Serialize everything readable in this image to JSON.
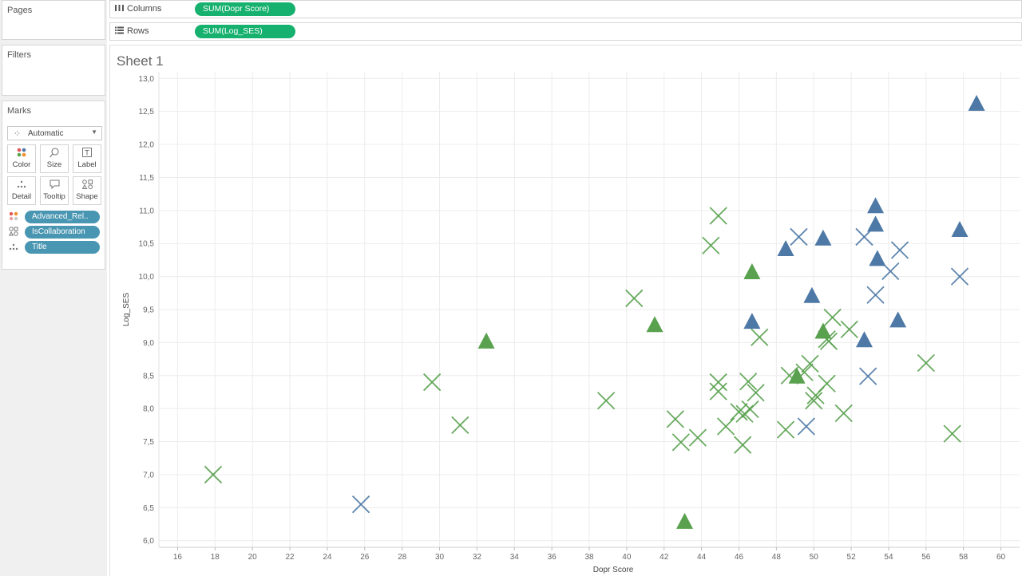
{
  "panes": {
    "pages_title": "Pages",
    "filters_title": "Filters",
    "marks_title": "Marks"
  },
  "marks_card": {
    "mark_type": "Automatic",
    "buttons": [
      {
        "label": "Color",
        "icon": "color-dots-icon"
      },
      {
        "label": "Size",
        "icon": "size-icon"
      },
      {
        "label": "Label",
        "icon": "label-icon"
      },
      {
        "label": "Detail",
        "icon": "detail-icon"
      },
      {
        "label": "Tooltip",
        "icon": "tooltip-icon"
      },
      {
        "label": "Shape",
        "icon": "shape-icon"
      }
    ],
    "fields": [
      {
        "label": "Advanced_Rel..",
        "icon": "color-dots-icon"
      },
      {
        "label": "IsCollaboration",
        "icon": "shape-icon"
      },
      {
        "label": "Title",
        "icon": "detail-icon"
      }
    ]
  },
  "shelves": {
    "columns_label": "Columns",
    "columns_pill": "SUM(Dopr Score)",
    "rows_label": "Rows",
    "rows_pill": "SUM(Log_SES)"
  },
  "sheet": {
    "title": "Sheet 1"
  },
  "colors": {
    "green": "#59a14f",
    "blue": "#4e79a7",
    "pill_green": "#16b16e",
    "pill_blue": "#4996b2"
  },
  "chart_data": {
    "type": "scatter",
    "xlabel": "Dopr Score",
    "ylabel": "Log_SES",
    "xlim": [
      15,
      61
    ],
    "ylim": [
      5.9,
      13.1
    ],
    "x_ticks": [
      16,
      18,
      20,
      22,
      24,
      26,
      28,
      30,
      32,
      34,
      36,
      38,
      40,
      42,
      44,
      46,
      48,
      50,
      52,
      54,
      56,
      58,
      60
    ],
    "y_ticks": [
      "6,0",
      "6,5",
      "7,0",
      "7,5",
      "8,0",
      "8,5",
      "9,0",
      "9,5",
      "10,0",
      "10,5",
      "11,0",
      "11,5",
      "12,0",
      "12,5",
      "13,0"
    ],
    "y_tick_values": [
      6.0,
      6.5,
      7.0,
      7.5,
      8.0,
      8.5,
      9.0,
      9.5,
      10.0,
      10.5,
      11.0,
      11.5,
      12.0,
      12.5,
      13.0
    ],
    "grid": true,
    "series": [
      {
        "color": "#59a14f",
        "shape": "cross",
        "points": [
          [
            17.9,
            7.0
          ],
          [
            29.6,
            8.4
          ],
          [
            31.1,
            7.75
          ],
          [
            38.9,
            8.12
          ],
          [
            40.4,
            9.67
          ],
          [
            42.6,
            7.84
          ],
          [
            42.9,
            7.49
          ],
          [
            43.8,
            7.56
          ],
          [
            44.5,
            10.47
          ],
          [
            44.9,
            10.92
          ],
          [
            44.9,
            8.4
          ],
          [
            44.9,
            8.26
          ],
          [
            45.3,
            7.73
          ],
          [
            46.0,
            7.95
          ],
          [
            46.3,
            7.92
          ],
          [
            46.2,
            7.45
          ],
          [
            46.5,
            8.41
          ],
          [
            46.6,
            7.99
          ],
          [
            46.9,
            8.24
          ],
          [
            47.1,
            9.08
          ],
          [
            48.5,
            7.68
          ],
          [
            48.7,
            8.5
          ],
          [
            49.5,
            8.55
          ],
          [
            49.8,
            8.68
          ],
          [
            50.1,
            8.2
          ],
          [
            50.0,
            8.12
          ],
          [
            50.7,
            9.05
          ],
          [
            50.8,
            9.02
          ],
          [
            50.7,
            8.38
          ],
          [
            51.0,
            9.38
          ],
          [
            51.6,
            7.93
          ],
          [
            51.9,
            9.2
          ],
          [
            56.0,
            8.69
          ],
          [
            57.4,
            7.62
          ]
        ]
      },
      {
        "color": "#59a14f",
        "shape": "triangle",
        "points": [
          [
            32.5,
            9.03
          ],
          [
            41.5,
            9.28
          ],
          [
            43.1,
            6.3
          ],
          [
            46.7,
            10.08
          ],
          [
            49.1,
            8.5
          ],
          [
            50.5,
            9.18
          ]
        ]
      },
      {
        "color": "#4e79a7",
        "shape": "cross",
        "points": [
          [
            25.8,
            6.55
          ],
          [
            49.2,
            10.6
          ],
          [
            49.6,
            7.73
          ],
          [
            52.7,
            10.6
          ],
          [
            52.9,
            8.49
          ],
          [
            53.3,
            9.72
          ],
          [
            54.1,
            10.08
          ],
          [
            54.6,
            10.4
          ],
          [
            57.8,
            10.0
          ]
        ]
      },
      {
        "color": "#4e79a7",
        "shape": "triangle",
        "points": [
          [
            46.7,
            9.33
          ],
          [
            48.5,
            10.43
          ],
          [
            49.9,
            9.72
          ],
          [
            50.5,
            10.59
          ],
          [
            52.7,
            9.05
          ],
          [
            53.3,
            10.8
          ],
          [
            53.3,
            11.08
          ],
          [
            53.4,
            10.28
          ],
          [
            54.5,
            9.35
          ],
          [
            57.8,
            10.72
          ],
          [
            58.7,
            12.63
          ]
        ]
      }
    ]
  }
}
